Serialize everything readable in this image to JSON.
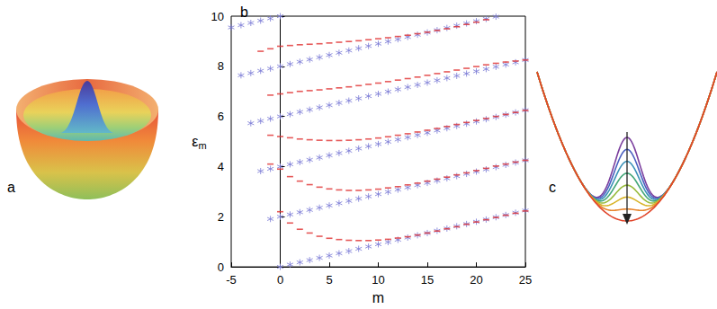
{
  "chart_data": {
    "type": "scatter",
    "title": "b",
    "xlabel": "m",
    "ylabel": "εm",
    "xlim": [
      -5,
      25
    ],
    "xticks": [
      -5,
      0,
      5,
      10,
      15,
      20,
      25
    ],
    "ylim": [
      0,
      10
    ],
    "yticks": [
      0,
      2,
      4,
      6,
      8,
      10
    ],
    "grid": false,
    "series": [
      {
        "color": "#7878d4",
        "marker": "asterisk",
        "x": [
          0,
          1,
          2,
          3,
          4,
          5,
          6,
          7,
          8,
          9,
          10,
          11,
          12,
          13,
          14,
          15,
          16,
          17,
          18,
          19,
          20,
          21,
          22,
          23,
          24,
          25
        ],
        "values": [
          0,
          0.09,
          0.18,
          0.27,
          0.36,
          0.45,
          0.54,
          0.63,
          0.72,
          0.81,
          0.9,
          0.99,
          1.08,
          1.17,
          1.26,
          1.35,
          1.44,
          1.53,
          1.62,
          1.71,
          1.8,
          1.89,
          1.98,
          2.07,
          2.16,
          2.25
        ]
      },
      {
        "color": "#7878d4",
        "marker": "asterisk",
        "x": [
          -1,
          0,
          1,
          2,
          3,
          4,
          5,
          6,
          7,
          8,
          9,
          10,
          11,
          12,
          13,
          14,
          15,
          16,
          17,
          18,
          19,
          20,
          21,
          22,
          23,
          24,
          25
        ],
        "values": [
          1.91,
          2,
          2.09,
          2.18,
          2.27,
          2.36,
          2.45,
          2.54,
          2.63,
          2.72,
          2.81,
          2.9,
          2.99,
          3.08,
          3.17,
          3.26,
          3.35,
          3.44,
          3.53,
          3.62,
          3.71,
          3.8,
          3.89,
          3.98,
          4.07,
          4.16,
          4.25
        ]
      },
      {
        "color": "#7878d4",
        "marker": "asterisk",
        "x": [
          -2,
          -1,
          0,
          1,
          2,
          3,
          4,
          5,
          6,
          7,
          8,
          9,
          10,
          11,
          12,
          13,
          14,
          15,
          16,
          17,
          18,
          19,
          20,
          21,
          22,
          23,
          24,
          25
        ],
        "values": [
          3.82,
          3.91,
          4,
          4.09,
          4.18,
          4.27,
          4.36,
          4.45,
          4.54,
          4.63,
          4.72,
          4.81,
          4.9,
          4.99,
          5.08,
          5.17,
          5.26,
          5.35,
          5.44,
          5.53,
          5.62,
          5.71,
          5.8,
          5.89,
          5.98,
          6.07,
          6.16,
          6.25
        ]
      },
      {
        "color": "#7878d4",
        "marker": "asterisk",
        "x": [
          -3,
          -2,
          -1,
          0,
          1,
          2,
          3,
          4,
          5,
          6,
          7,
          8,
          9,
          10,
          11,
          12,
          13,
          14,
          15,
          16,
          17,
          18,
          19,
          20,
          21,
          22,
          23,
          24,
          25
        ],
        "values": [
          5.73,
          5.82,
          5.91,
          6,
          6.09,
          6.18,
          6.27,
          6.36,
          6.45,
          6.54,
          6.63,
          6.72,
          6.81,
          6.9,
          6.99,
          7.08,
          7.17,
          7.26,
          7.35,
          7.44,
          7.53,
          7.62,
          7.71,
          7.8,
          7.89,
          7.98,
          8.07,
          8.16,
          8.25
        ]
      },
      {
        "color": "#7878d4",
        "marker": "asterisk",
        "x": [
          -4,
          -3,
          -2,
          -1,
          0,
          1,
          2,
          3,
          4,
          5,
          6,
          7,
          8,
          9,
          10,
          11,
          12,
          13,
          14,
          15,
          16,
          17,
          18,
          19,
          20,
          21,
          22
        ],
        "values": [
          7.64,
          7.73,
          7.82,
          7.91,
          8,
          8.09,
          8.18,
          8.27,
          8.36,
          8.45,
          8.54,
          8.63,
          8.72,
          8.81,
          8.9,
          8.99,
          9.08,
          9.17,
          9.26,
          9.35,
          9.44,
          9.53,
          9.62,
          9.71,
          9.8,
          9.89,
          9.98
        ]
      },
      {
        "color": "#7878d4",
        "marker": "asterisk",
        "x": [
          -5,
          -4,
          -3,
          -2,
          -1,
          0
        ],
        "values": [
          9.55,
          9.64,
          9.73,
          9.82,
          9.91,
          10
        ]
      },
      {
        "color": "#e03030",
        "marker": "dash",
        "x": [
          0,
          1,
          2,
          3,
          4,
          5,
          6,
          7,
          8,
          9,
          10,
          11,
          12,
          13,
          14,
          15,
          16,
          17,
          18,
          19,
          20,
          21,
          22,
          23,
          24,
          25
        ],
        "values": [
          2.2,
          1.75,
          1.5,
          1.35,
          1.22,
          1.14,
          1.09,
          1.06,
          1.05,
          1.05,
          1.07,
          1.1,
          1.15,
          1.2,
          1.27,
          1.35,
          1.43,
          1.52,
          1.6,
          1.7,
          1.79,
          1.88,
          1.97,
          2.06,
          2.14,
          2.23
        ]
      },
      {
        "color": "#e03030",
        "marker": "dash",
        "x": [
          -1,
          0,
          1,
          2,
          3,
          4,
          5,
          6,
          7,
          8,
          9,
          10,
          11,
          12,
          13,
          14,
          15,
          16,
          17,
          18,
          19,
          20,
          21,
          22,
          23,
          24,
          25
        ],
        "values": [
          4.1,
          3.9,
          3.6,
          3.42,
          3.28,
          3.18,
          3.11,
          3.07,
          3.05,
          3.05,
          3.07,
          3.1,
          3.15,
          3.2,
          3.27,
          3.34,
          3.42,
          3.5,
          3.58,
          3.67,
          3.75,
          3.84,
          3.93,
          4.02,
          4.1,
          4.18,
          4.25
        ]
      },
      {
        "color": "#e03030",
        "marker": "dash",
        "x": [
          -1,
          0,
          1,
          2,
          3,
          4,
          5,
          6,
          7,
          8,
          9,
          10,
          11,
          12,
          13,
          14,
          15,
          16,
          17,
          18,
          19,
          20,
          21,
          22,
          23,
          24,
          25
        ],
        "values": [
          5.25,
          5.2,
          5.15,
          5.1,
          5.07,
          5.05,
          5.04,
          5.04,
          5.05,
          5.07,
          5.1,
          5.14,
          5.19,
          5.25,
          5.31,
          5.38,
          5.45,
          5.52,
          5.6,
          5.68,
          5.76,
          5.84,
          5.92,
          6.0,
          6.08,
          6.16,
          6.24
        ]
      },
      {
        "color": "#e03030",
        "marker": "dash",
        "x": [
          -1,
          0,
          1,
          2,
          3,
          4,
          5,
          6,
          7,
          8,
          9,
          10,
          11,
          12,
          13,
          14,
          15,
          16,
          17,
          18,
          19,
          20,
          21,
          22,
          23,
          24,
          25
        ],
        "values": [
          6.85,
          6.9,
          6.95,
          7.0,
          7.03,
          7.06,
          7.1,
          7.14,
          7.18,
          7.23,
          7.28,
          7.33,
          7.39,
          7.45,
          7.51,
          7.57,
          7.64,
          7.71,
          7.78,
          7.85,
          7.92,
          7.99,
          8.06,
          8.12,
          8.17,
          8.21,
          8.25
        ]
      },
      {
        "color": "#e03030",
        "marker": "dash",
        "x": [
          -2,
          -1,
          0,
          1,
          2,
          3,
          4,
          5,
          6,
          7,
          8,
          9,
          10,
          11,
          12,
          13,
          14,
          15,
          16,
          17,
          18,
          19,
          20,
          21
        ],
        "values": [
          8.6,
          8.7,
          8.8,
          8.83,
          8.86,
          8.88,
          8.9,
          8.93,
          8.96,
          8.99,
          9.02,
          9.06,
          9.1,
          9.14,
          9.19,
          9.24,
          9.3,
          9.36,
          9.43,
          9.5,
          9.58,
          9.67,
          9.76,
          9.86
        ]
      }
    ]
  },
  "panels": [
    {
      "label": "a"
    },
    {
      "label": "c"
    }
  ]
}
